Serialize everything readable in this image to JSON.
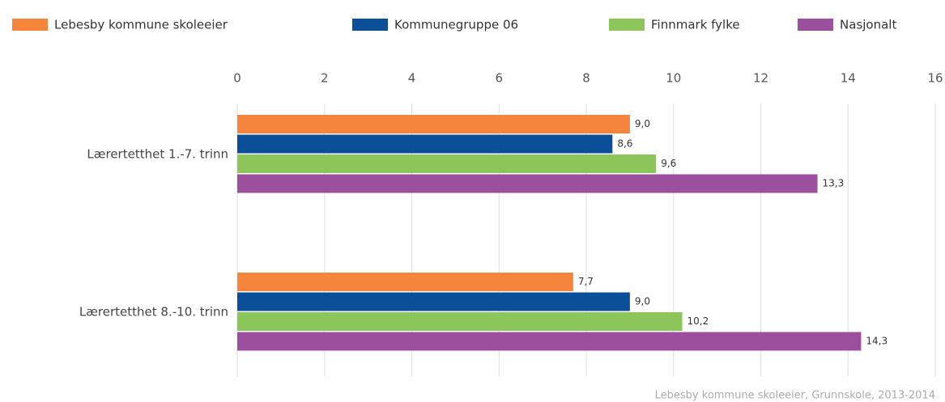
{
  "chart_data": {
    "type": "bar",
    "orientation": "horizontal",
    "categories": [
      "Lærertetthet 1.-7. trinn",
      "Lærertetthet 8.-10. trinn"
    ],
    "series": [
      {
        "name": "Lebesby kommune skoleeier",
        "color": "#f5843c",
        "values": [
          9.0,
          7.7
        ],
        "value_labels": [
          "9,0",
          "7,7"
        ]
      },
      {
        "name": "Kommunegruppe 06",
        "color": "#0b4f99",
        "values": [
          8.6,
          9.0
        ],
        "value_labels": [
          "8,6",
          "9,0"
        ]
      },
      {
        "name": "Finnmark fylke",
        "color": "#8cc65a",
        "values": [
          9.6,
          10.2
        ],
        "value_labels": [
          "9,6",
          "10,2"
        ]
      },
      {
        "name": "Nasjonalt",
        "color": "#9b4f9d",
        "values": [
          13.3,
          14.3
        ],
        "value_labels": [
          "13,3",
          "14,3"
        ]
      }
    ],
    "xlim": [
      0,
      16
    ],
    "xticks": [
      0,
      2,
      4,
      6,
      8,
      10,
      12,
      14,
      16
    ],
    "grid": true,
    "source": "Lebesby kommune skoleeier, Grunnskole, 2013-2014"
  }
}
